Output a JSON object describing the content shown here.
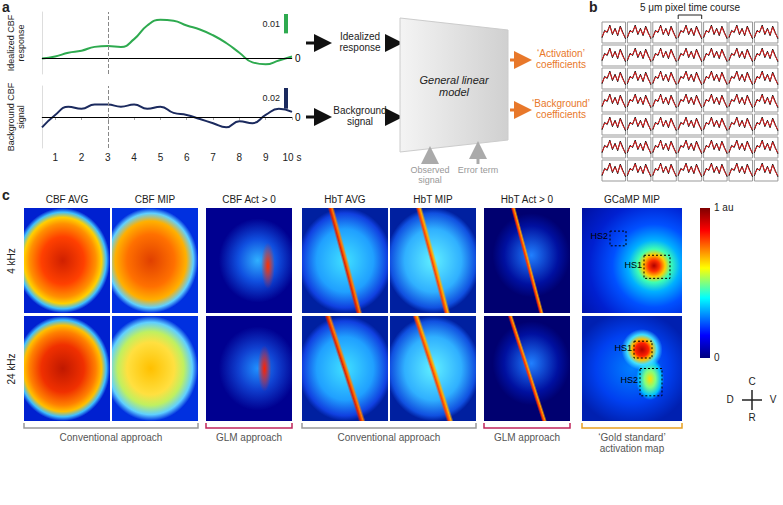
{
  "panel_labels": [
    "a",
    "b",
    "c"
  ],
  "chart_data": [
    {
      "type": "line",
      "y_label": "Idealized CBF response",
      "x": [
        0.5,
        1,
        1.5,
        2,
        2.5,
        3,
        3.5,
        4,
        4.5,
        5,
        5.5,
        6,
        6.5,
        7,
        7.5,
        8,
        8.5,
        9,
        9.5,
        10
      ],
      "values": [
        0,
        0.001,
        0.003,
        0.004,
        0.006,
        0.0065,
        0.006,
        0.01,
        0.017,
        0.02,
        0.0195,
        0.017,
        0.015,
        0.012,
        0.008,
        0.003,
        -0.002,
        -0.003,
        -0.001,
        0.001
      ],
      "color": "#2eaa4f",
      "xlim": [
        0.5,
        10
      ],
      "ylim": [
        -0.008,
        0.024
      ],
      "tick_labels": false,
      "scale_bar": 0.01,
      "reference_line": 0,
      "marker_x": 3
    },
    {
      "type": "line",
      "y_label": "Background CBF signal",
      "x": [
        0.5,
        1,
        1.5,
        2,
        2.5,
        3,
        3.5,
        4,
        4.5,
        5,
        5.5,
        6,
        6.5,
        7,
        7.5,
        8,
        8.5,
        9,
        9.5,
        10
      ],
      "values": [
        -0.01,
        0.002,
        0.01,
        0.008,
        0.012,
        0.012,
        0.01,
        0.012,
        0.008,
        0.01,
        0.004,
        0.002,
        -0.002,
        -0.006,
        -0.01,
        -0.004,
        -0.006,
        0.002,
        0.008,
        0.005
      ],
      "color": "#1b2a5e",
      "xlim": [
        0.5,
        10
      ],
      "ylim": [
        -0.03,
        0.03
      ],
      "xticks": [
        1,
        2,
        3,
        4,
        5,
        6,
        7,
        8,
        9,
        {
          "value": 10,
          "label": "10 s"
        }
      ],
      "tick_labels": "x",
      "scale_bar": 0.02,
      "reference_line": 0,
      "marker_x": 3
    },
    {
      "type": "line",
      "title": "5 μm pixel time course",
      "x": [
        0,
        1,
        2,
        3,
        4,
        5,
        6,
        7,
        8,
        9
      ],
      "series": [
        {
          "color": "#000000",
          "values": [
            0.25,
            0.6,
            0.5,
            0.85,
            0.4,
            0.7,
            0.35,
            0.8,
            0.5,
            0.2
          ]
        },
        {
          "color": "#e02020",
          "values": [
            0.3,
            0.55,
            0.55,
            0.8,
            0.45,
            0.65,
            0.4,
            0.75,
            0.45,
            0.25
          ]
        }
      ],
      "xlim": [
        0,
        9
      ],
      "ylim": [
        0,
        1
      ],
      "tick_labels": false,
      "rows": 7,
      "cols": 7
    }
  ],
  "diagram": {
    "inputs": [
      "Idealized response",
      "Background signal"
    ],
    "model": "General linear model",
    "below": [
      "Observed signal",
      "Error term"
    ],
    "outputs": [
      "‘Activation’ coefficients",
      "‘Background’ coefficients"
    ]
  },
  "images": {
    "columns": [
      "CBF AVG",
      "CBF MIP",
      "CBF Act > 0",
      "HbT AVG",
      "HbT MIP",
      "HbT Act > 0",
      "GCaMP MIP"
    ],
    "rows": [
      "4 kHz",
      "24 kHz"
    ],
    "hotspots": [
      "HS1",
      "HS2"
    ],
    "groups": [
      {
        "label": "Conventional approach",
        "columns": [
          0,
          1
        ],
        "color": "#999999"
      },
      {
        "label": "GLM approach",
        "columns": [
          2
        ],
        "color": "#c0245a"
      },
      {
        "label": "Conventional approach",
        "columns": [
          3,
          4
        ],
        "color": "#999999"
      },
      {
        "label": "GLM approach",
        "columns": [
          5
        ],
        "color": "#c0245a"
      },
      {
        "label": "‘Gold standard’ activation map",
        "columns": [
          6
        ],
        "color": "#e8a020"
      }
    ],
    "colorbar": {
      "range": [
        0,
        1
      ],
      "ticks": [
        0,
        {
          "value": 1,
          "label": "1 au"
        }
      ]
    },
    "orientation": {
      "up": "C",
      "right": "V",
      "left": "D",
      "down": "R"
    }
  }
}
